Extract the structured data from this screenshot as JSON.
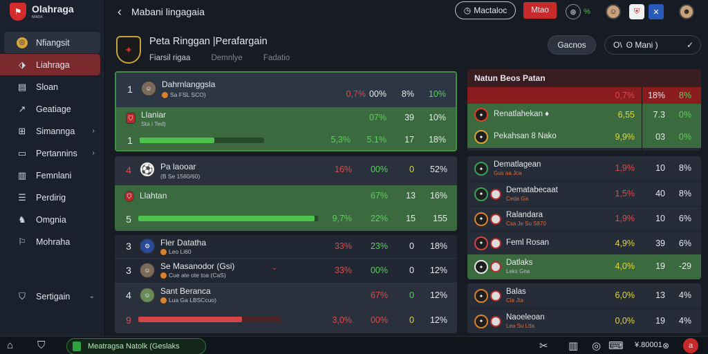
{
  "brand": {
    "name": "Olahraga",
    "sub": "ᴍᴀᴅᴀ"
  },
  "sidebar": {
    "items": [
      {
        "label": "Nfiangsit",
        "icon": "soccer-icon"
      },
      {
        "label": "Liahraga",
        "icon": "tag-icon"
      },
      {
        "label": "Sloan",
        "icon": "cards-icon"
      },
      {
        "label": "Geatiage",
        "icon": "chart-icon"
      },
      {
        "label": "Simannga",
        "icon": "grid-icon",
        "arrow": "›"
      },
      {
        "label": "Pertannins",
        "icon": "document-icon",
        "arrow": "›"
      },
      {
        "label": "Femnlani",
        "icon": "table-icon"
      },
      {
        "label": "Perdirig",
        "icon": "list-icon"
      },
      {
        "label": "Omgnia",
        "icon": "person-icon"
      },
      {
        "label": "Mohraha",
        "icon": "flag-icon"
      }
    ],
    "bottom": {
      "label": "Sertigain",
      "icon": "settings-icon",
      "arrow": "⌄"
    }
  },
  "topbar": {
    "back_icon": "back-arrow-icon",
    "title": "Mabani lingagaia",
    "pill_label": "Mactaloc",
    "red_label": "Mtao",
    "icons": [
      "stopwatch-icon",
      "percent-icon",
      "avatar-1",
      "team-badge-1",
      "team-badge-2",
      "avatar-2"
    ]
  },
  "match": {
    "title": "Peta Ringgan |Perafargain",
    "tabs": [
      "Fiarsil rigaa",
      "Demnlye",
      "Fadatio"
    ],
    "button": "Gacnos",
    "select": {
      "icons": "O\\",
      "value": "ʘ  Mani )",
      "chevron": "✓"
    }
  },
  "left_table": {
    "group1": [
      {
        "num": "1",
        "name": "Dahrnlanggsla",
        "sub": "Sa   FSL  SCO)",
        "c1": "0,7%",
        "c2": "00%",
        "c3": "8%",
        "c4": "10%",
        "c2c": "white",
        "c4c": "green"
      },
      {
        "num": "",
        "name": "Llaniar",
        "sub": "Sta  i  Ted)",
        "c1": "",
        "c2": "07%",
        "c3": "39",
        "c4": "10%",
        "c2c": "green",
        "c4c": "white"
      },
      {
        "num": "1",
        "bar": 0.6,
        "c1": "5,3%",
        "c2": "5.1%",
        "c3": "17",
        "c4": "18%",
        "c1c": "green",
        "c2c": "green"
      }
    ],
    "group2": [
      {
        "num": "4",
        "name": "Pa laooar",
        "sub": "(B   Se   1560/60)",
        "c1": "16%",
        "c2": "00%",
        "c3": "0",
        "c4": "52%"
      },
      {
        "num": "",
        "name": "Llahtan",
        "c2": "67%",
        "c3": "13",
        "c4": "16%"
      },
      {
        "num": "5",
        "bar": 0.98,
        "c1": "9,7%",
        "c2": "22%",
        "c3": "15",
        "c4": "155"
      }
    ],
    "group3": [
      {
        "num": "3",
        "name": "Fler Datatha",
        "sub": "Leo  Li60",
        "c1": "33%",
        "c2": "23%",
        "c3": "0",
        "c4": "18%"
      },
      {
        "num": "3",
        "name": "Se Masanodor (Gsi)",
        "sub": "Cue ate ote toa  (CaS)",
        "c1": "33%",
        "c2": "00%",
        "c3": "0",
        "c4": "12%"
      },
      {
        "num": "4",
        "name": "Sant Beranca",
        "sub": "Lua  Ga  LBSCcuo)",
        "c1": "",
        "c2": "67%",
        "c3": "0",
        "c4": "12%"
      },
      {
        "num": "9",
        "bar": 0.73,
        "c1": "3,0%",
        "c2": "00%",
        "c3": "0",
        "c4": "12%"
      }
    ]
  },
  "right_table": {
    "title": "Natun Beos Patan",
    "head": {
      "c1": "0,7%",
      "c2": "18%",
      "c3": "8%"
    },
    "top_rows": [
      {
        "name": "Renatlahekan ♦",
        "c1": "6,55",
        "c2": "7.3",
        "c3": "0%"
      },
      {
        "name": "Pekahsan 8 Nako",
        "c1": "9,9%",
        "c2": "03",
        "c3": "0%"
      }
    ],
    "rows": [
      {
        "name": "Dematlagean",
        "sub": "Gus   aa Jca",
        "c1": "1,9%",
        "c2": "10",
        "c3": "8%",
        "c1c": "red",
        "subc": "orange"
      },
      {
        "name": "Dematabecaat",
        "sub": "Ceda  Ga",
        "c1": "1,5%",
        "c2": "40",
        "c3": "8%",
        "c1c": "red",
        "subc": "orange"
      },
      {
        "name": "Ralandara",
        "sub": "Csa  Je Su  S870",
        "c1": "1,9%",
        "c2": "10",
        "c3": "6%",
        "c1c": "red",
        "subc": "orange"
      },
      {
        "name": "Feml Rosan",
        "sub": "",
        "c1": "4,9%",
        "c2": "39",
        "c3": "6%",
        "c1c": "yellow"
      },
      {
        "name": "Datlaks",
        "sub": "Leks  Gna",
        "c1": "4,0%",
        "c2": "19",
        "c3": "-29",
        "c1c": "yellow",
        "subc": "gray"
      },
      {
        "name": "Balas",
        "sub": "Cla  Jta",
        "c1": "6,0%",
        "c2": "13",
        "c3": "4%",
        "c1c": "yellow",
        "subc": "orange"
      },
      {
        "name": "Naoeleoan",
        "sub": "Lea Su   Ltta",
        "c1": "0,0%",
        "c2": "19",
        "c3": "4%",
        "c1c": "yellow",
        "subc": "orange"
      }
    ]
  },
  "bottombar": {
    "pill": "Meatragsa Natolk   (Geslaks",
    "right_text": "¥.80001",
    "badge": "a",
    "icons": [
      "home-icon",
      "shield-icon",
      "crossed-tools-icon",
      "building-icon",
      "chat-icon",
      "game-icon"
    ]
  }
}
